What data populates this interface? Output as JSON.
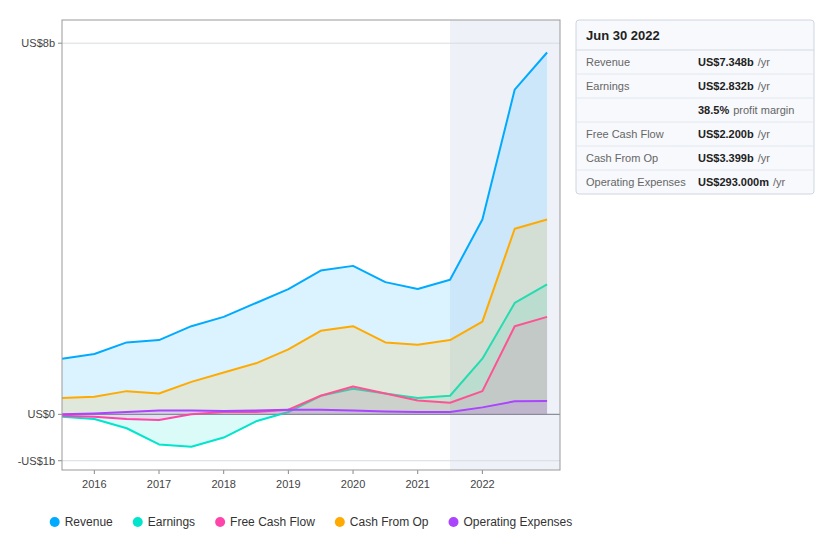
{
  "chart_data": {
    "type": "area",
    "x": [
      2015.5,
      2016.0,
      2016.5,
      2017.0,
      2017.5,
      2018.0,
      2018.5,
      2019.0,
      2019.5,
      2020.0,
      2020.5,
      2021.0,
      2021.5,
      2022.0,
      2022.5,
      2023.0
    ],
    "xlim": [
      2015.5,
      2023.2
    ],
    "xticks": [
      2016,
      2017,
      2018,
      2019,
      2020,
      2021,
      2022
    ],
    "ylim": [
      -1.2,
      8.5
    ],
    "yticks": [
      {
        "value": -1,
        "label": "-US$1b"
      },
      {
        "value": 0,
        "label": "US$0"
      },
      {
        "value": 8,
        "label": "US$8b"
      }
    ],
    "grid": true,
    "legend": "bottom",
    "highlight_start": 2021.5,
    "series": [
      {
        "name": "Revenue",
        "color": "#00aaff",
        "values": [
          1.2,
          1.3,
          1.55,
          1.6,
          1.9,
          2.1,
          2.4,
          2.7,
          3.1,
          3.2,
          2.85,
          2.7,
          2.9,
          4.2,
          7.0,
          7.8
        ]
      },
      {
        "name": "Earnings",
        "color": "#00e5cc",
        "values": [
          -0.05,
          -0.1,
          -0.3,
          -0.65,
          -0.7,
          -0.5,
          -0.15,
          0.05,
          0.4,
          0.55,
          0.45,
          0.35,
          0.4,
          1.2,
          2.4,
          2.8
        ]
      },
      {
        "name": "Free Cash Flow",
        "color": "#ff44aa",
        "values": [
          -0.03,
          -0.05,
          -0.1,
          -0.12,
          0.0,
          0.05,
          0.05,
          0.1,
          0.4,
          0.6,
          0.45,
          0.3,
          0.25,
          0.5,
          1.9,
          2.1
        ]
      },
      {
        "name": "Cash From Op",
        "color": "#ffaa00",
        "values": [
          0.35,
          0.38,
          0.5,
          0.45,
          0.7,
          0.9,
          1.1,
          1.4,
          1.8,
          1.9,
          1.55,
          1.5,
          1.6,
          2.0,
          4.0,
          4.2
        ]
      },
      {
        "name": "Operating Expenses",
        "color": "#aa44ff",
        "values": [
          0.0,
          0.02,
          0.05,
          0.08,
          0.08,
          0.07,
          0.08,
          0.1,
          0.1,
          0.08,
          0.06,
          0.05,
          0.05,
          0.15,
          0.28,
          0.29
        ]
      }
    ],
    "info_box": {
      "title": "Jun 30 2022",
      "rows": [
        {
          "label": "Revenue",
          "value": "US$7.348b",
          "suffix": "/yr"
        },
        {
          "label": "Earnings",
          "value": "US$2.832b",
          "suffix": "/yr"
        },
        {
          "label": null,
          "value": "38.5%",
          "suffix": "profit margin"
        },
        {
          "label": "Free Cash Flow",
          "value": "US$2.200b",
          "suffix": "/yr"
        },
        {
          "label": "Cash From Op",
          "value": "US$3.399b",
          "suffix": "/yr"
        },
        {
          "label": "Operating Expenses",
          "value": "US$293.000m",
          "suffix": "/yr"
        }
      ]
    }
  }
}
